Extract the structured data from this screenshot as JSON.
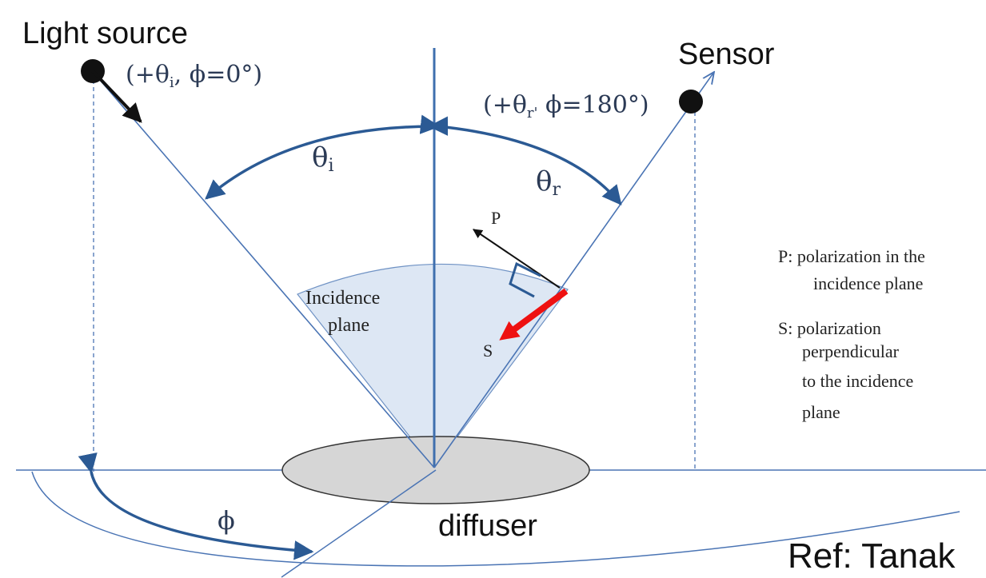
{
  "labels": {
    "light_source": "Light source",
    "sensor": "Sensor",
    "diffuser": "diffuser",
    "reference": "Ref: Tanak",
    "incidence_plane_line1": "Incidence",
    "incidence_plane_line2": "plane",
    "p_vector": "P",
    "s_vector": "S",
    "theta_i": "θ",
    "theta_i_sub": "i",
    "theta_r": "θ",
    "theta_r_sub": "r",
    "phi": "ϕ",
    "light_coords_a": "(+θ",
    "light_coords_sub": "i",
    "light_coords_b": ", ϕ=0°)",
    "sensor_coords_a": "(+θ",
    "sensor_coords_sub": "r'",
    "sensor_coords_b": " ϕ=180°)"
  },
  "legend": {
    "p_line1": "P: polarization in the",
    "p_line2": "incidence plane",
    "s_line1": "S: polarization",
    "s_line2": "perpendicular",
    "s_line3": "to the incidence",
    "s_line4": "plane"
  },
  "colors": {
    "ray": "#4a74b4",
    "normal": "#3f6fae",
    "angle_arc": "#2b5a94",
    "plane_fill": "#dde7f4",
    "diffuser_fill": "#d6d6d6",
    "s_arrow": "#ee1111",
    "dot": "#111111"
  }
}
